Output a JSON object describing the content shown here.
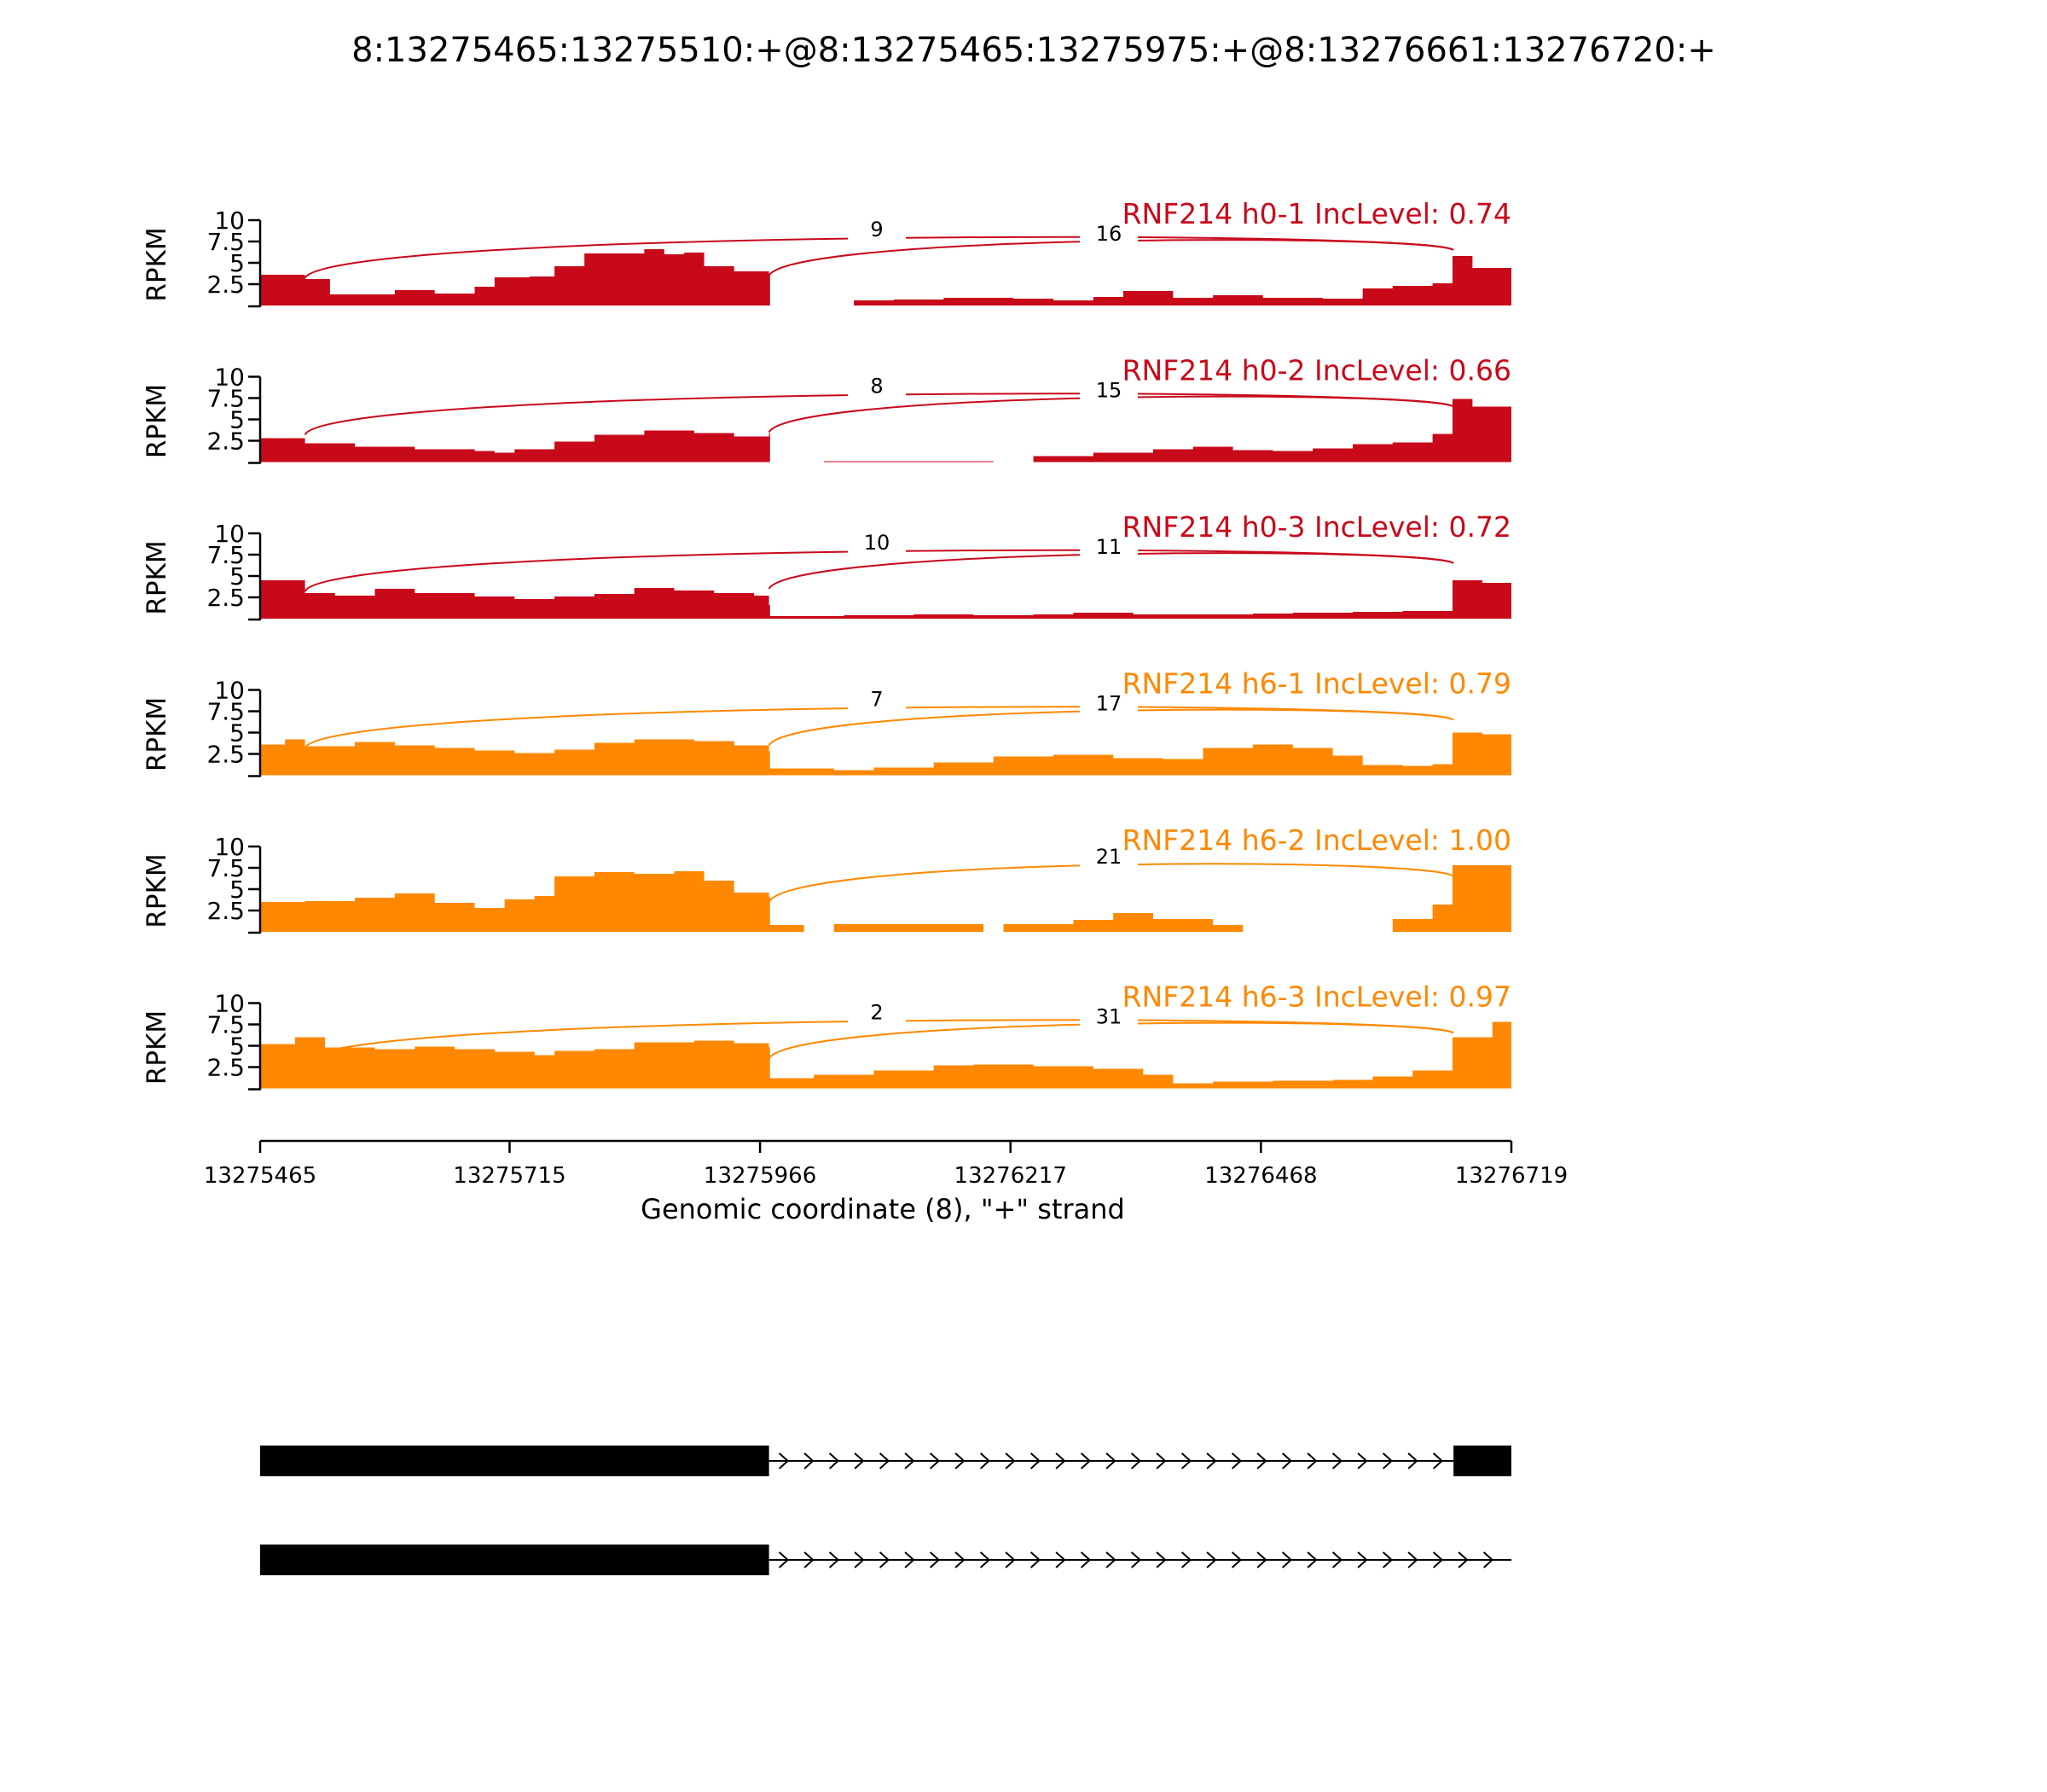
{
  "chart_data": {
    "type": "area",
    "title": "8:13275465:13275510:+@8:13275465:13275975:+@8:13276661:13276720:+",
    "xlabel": "Genomic coordinate (8), \"+\" strand",
    "ylabel": "RPKM",
    "xlim": [
      13275465,
      13276719
    ],
    "ylim": [
      0,
      10
    ],
    "x_ticks": [
      "13275465",
      "13275715",
      "13275966",
      "13276217",
      "13276468",
      "13276719"
    ],
    "y_ticks": [
      "2.5",
      "5",
      "7.5",
      "10"
    ],
    "exon1_end": 13275975,
    "exon2_start": 13276661,
    "colors": {
      "h0": "#c8091a",
      "h6": "#ff8800",
      "axis": "#000000"
    },
    "series": [
      {
        "label": "RNF214 h0-1 IncLevel: 0.74",
        "color": "#c8091a",
        "junctions": [
          {
            "count": "9",
            "from": 13275510,
            "to": 13276661
          },
          {
            "count": "16",
            "from": 13275975,
            "to": 13276661
          }
        ],
        "coverage": [
          [
            13275465,
            3.6
          ],
          [
            13275510,
            3.1
          ],
          [
            13275535,
            1.3
          ],
          [
            13275600,
            1.8
          ],
          [
            13275640,
            1.4
          ],
          [
            13275680,
            2.2
          ],
          [
            13275700,
            3.3
          ],
          [
            13275735,
            3.4
          ],
          [
            13275760,
            4.6
          ],
          [
            13275790,
            6.1
          ],
          [
            13275820,
            6.1
          ],
          [
            13275850,
            6.6
          ],
          [
            13275870,
            6.0
          ],
          [
            13275890,
            6.2
          ],
          [
            13275910,
            4.6
          ],
          [
            13275940,
            4.0
          ],
          [
            13275975,
            3.6
          ],
          [
            13275976,
            0.0
          ],
          [
            13276040,
            0.0
          ],
          [
            13276060,
            0.6
          ],
          [
            13276100,
            0.7
          ],
          [
            13276150,
            0.9
          ],
          [
            13276220,
            0.8
          ],
          [
            13276260,
            0.6
          ],
          [
            13276300,
            1.0
          ],
          [
            13276330,
            1.7
          ],
          [
            13276380,
            0.9
          ],
          [
            13276420,
            1.2
          ],
          [
            13276470,
            0.9
          ],
          [
            13276530,
            0.8
          ],
          [
            13276570,
            2.0
          ],
          [
            13276600,
            2.3
          ],
          [
            13276640,
            2.6
          ],
          [
            13276660,
            5.8
          ],
          [
            13276680,
            4.4
          ],
          [
            13276719,
            4.2
          ]
        ]
      },
      {
        "label": "RNF214 h0-2 IncLevel: 0.66",
        "color": "#c8091a",
        "junctions": [
          {
            "count": "8",
            "from": 13275510,
            "to": 13276661
          },
          {
            "count": "15",
            "from": 13275975,
            "to": 13276661
          }
        ],
        "coverage": [
          [
            13275465,
            2.8
          ],
          [
            13275510,
            2.2
          ],
          [
            13275560,
            1.8
          ],
          [
            13275620,
            1.5
          ],
          [
            13275680,
            1.3
          ],
          [
            13275700,
            1.1
          ],
          [
            13275720,
            1.5
          ],
          [
            13275760,
            2.4
          ],
          [
            13275800,
            3.2
          ],
          [
            13275850,
            3.7
          ],
          [
            13275900,
            3.4
          ],
          [
            13275940,
            3.0
          ],
          [
            13275975,
            3.4
          ],
          [
            13275976,
            0.0
          ],
          [
            13276020,
            0.0
          ],
          [
            13276030,
            0.1
          ],
          [
            13276200,
            0.0
          ],
          [
            13276240,
            0.7
          ],
          [
            13276300,
            1.1
          ],
          [
            13276360,
            1.5
          ],
          [
            13276400,
            1.8
          ],
          [
            13276440,
            1.4
          ],
          [
            13276480,
            1.3
          ],
          [
            13276520,
            1.6
          ],
          [
            13276560,
            2.1
          ],
          [
            13276600,
            2.3
          ],
          [
            13276640,
            3.3
          ],
          [
            13276660,
            7.4
          ],
          [
            13276680,
            6.5
          ],
          [
            13276719,
            6.3
          ]
        ]
      },
      {
        "label": "RNF214 h0-3 IncLevel: 0.72",
        "color": "#c8091a",
        "junctions": [
          {
            "count": "10",
            "from": 13275510,
            "to": 13276661
          },
          {
            "count": "11",
            "from": 13275975,
            "to": 13276661
          }
        ],
        "coverage": [
          [
            13275465,
            4.5
          ],
          [
            13275510,
            3.0
          ],
          [
            13275540,
            2.7
          ],
          [
            13275580,
            3.5
          ],
          [
            13275620,
            3.0
          ],
          [
            13275680,
            2.6
          ],
          [
            13275720,
            2.3
          ],
          [
            13275760,
            2.6
          ],
          [
            13275800,
            2.9
          ],
          [
            13275840,
            3.6
          ],
          [
            13275880,
            3.3
          ],
          [
            13275920,
            3.0
          ],
          [
            13275960,
            2.7
          ],
          [
            13275975,
            1.6
          ],
          [
            13275976,
            0.3
          ],
          [
            13276050,
            0.4
          ],
          [
            13276120,
            0.5
          ],
          [
            13276180,
            0.4
          ],
          [
            13276240,
            0.5
          ],
          [
            13276280,
            0.7
          ],
          [
            13276340,
            0.5
          ],
          [
            13276400,
            0.5
          ],
          [
            13276460,
            0.6
          ],
          [
            13276500,
            0.7
          ],
          [
            13276560,
            0.8
          ],
          [
            13276610,
            0.9
          ],
          [
            13276660,
            4.5
          ],
          [
            13276690,
            4.2
          ],
          [
            13276719,
            4.5
          ]
        ]
      },
      {
        "label": "RNF214 h6-1 IncLevel: 0.79",
        "color": "#ff8800",
        "junctions": [
          {
            "count": "7",
            "from": 13275510,
            "to": 13276661
          },
          {
            "count": "17",
            "from": 13275975,
            "to": 13276661
          }
        ],
        "coverage": [
          [
            13275465,
            3.6
          ],
          [
            13275490,
            4.2
          ],
          [
            13275510,
            3.4
          ],
          [
            13275560,
            3.9
          ],
          [
            13275600,
            3.5
          ],
          [
            13275640,
            3.2
          ],
          [
            13275680,
            2.9
          ],
          [
            13275720,
            2.6
          ],
          [
            13275760,
            3.0
          ],
          [
            13275800,
            3.8
          ],
          [
            13275840,
            4.2
          ],
          [
            13275900,
            4.0
          ],
          [
            13275940,
            3.5
          ],
          [
            13275975,
            2.8
          ],
          [
            13275976,
            0.8
          ],
          [
            13276040,
            0.6
          ],
          [
            13276080,
            0.9
          ],
          [
            13276140,
            1.5
          ],
          [
            13276200,
            2.2
          ],
          [
            13276260,
            2.4
          ],
          [
            13276320,
            2.0
          ],
          [
            13276370,
            1.9
          ],
          [
            13276410,
            3.2
          ],
          [
            13276460,
            3.6
          ],
          [
            13276500,
            3.2
          ],
          [
            13276540,
            2.3
          ],
          [
            13276570,
            1.2
          ],
          [
            13276610,
            1.1
          ],
          [
            13276640,
            1.3
          ],
          [
            13276660,
            5.0
          ],
          [
            13276690,
            4.8
          ],
          [
            13276719,
            5.1
          ]
        ]
      },
      {
        "label": "RNF214 h6-2 IncLevel: 1.00",
        "color": "#ff8800",
        "junctions": [
          {
            "count": "21",
            "from": 13275975,
            "to": 13276661
          }
        ],
        "coverage": [
          [
            13275465,
            3.5
          ],
          [
            13275510,
            3.6
          ],
          [
            13275560,
            4.0
          ],
          [
            13275600,
            4.5
          ],
          [
            13275640,
            3.4
          ],
          [
            13275680,
            2.8
          ],
          [
            13275710,
            3.8
          ],
          [
            13275740,
            4.2
          ],
          [
            13275760,
            6.5
          ],
          [
            13275800,
            7.0
          ],
          [
            13275840,
            6.8
          ],
          [
            13275880,
            7.1
          ],
          [
            13275910,
            6.0
          ],
          [
            13275940,
            4.6
          ],
          [
            13275975,
            4.1
          ],
          [
            13275976,
            0.8
          ],
          [
            13276010,
            0.0
          ],
          [
            13276040,
            0.9
          ],
          [
            13276190,
            0.0
          ],
          [
            13276210,
            0.9
          ],
          [
            13276280,
            1.4
          ],
          [
            13276320,
            2.2
          ],
          [
            13276360,
            1.5
          ],
          [
            13276420,
            0.8
          ],
          [
            13276450,
            0.0
          ],
          [
            13276560,
            0.0
          ],
          [
            13276600,
            1.5
          ],
          [
            13276640,
            3.2
          ],
          [
            13276660,
            7.8
          ],
          [
            13276719,
            7.8
          ]
        ]
      },
      {
        "label": "RNF214 h6-3 IncLevel: 0.97",
        "color": "#ff8800",
        "junctions": [
          {
            "count": "2",
            "from": 13275510,
            "to": 13276661
          },
          {
            "count": "31",
            "from": 13275975,
            "to": 13276661
          }
        ],
        "coverage": [
          [
            13275465,
            5.2
          ],
          [
            13275500,
            6.0
          ],
          [
            13275530,
            4.8
          ],
          [
            13275580,
            4.6
          ],
          [
            13275620,
            4.9
          ],
          [
            13275660,
            4.6
          ],
          [
            13275700,
            4.3
          ],
          [
            13275740,
            3.9
          ],
          [
            13275760,
            4.4
          ],
          [
            13275800,
            4.6
          ],
          [
            13275840,
            5.4
          ],
          [
            13275900,
            5.6
          ],
          [
            13275940,
            5.3
          ],
          [
            13275975,
            4.8
          ],
          [
            13275976,
            1.2
          ],
          [
            13276020,
            1.6
          ],
          [
            13276080,
            2.1
          ],
          [
            13276140,
            2.7
          ],
          [
            13276180,
            2.8
          ],
          [
            13276240,
            2.6
          ],
          [
            13276300,
            2.3
          ],
          [
            13276350,
            1.6
          ],
          [
            13276380,
            0.6
          ],
          [
            13276420,
            0.8
          ],
          [
            13276480,
            0.9
          ],
          [
            13276540,
            1.0
          ],
          [
            13276580,
            1.4
          ],
          [
            13276620,
            2.1
          ],
          [
            13276660,
            6.0
          ],
          [
            13276700,
            7.8
          ],
          [
            13276719,
            8.6
          ]
        ]
      }
    ],
    "transcripts": [
      {
        "exons": [
          [
            13275465,
            13275975
          ],
          [
            13276661,
            13276719
          ]
        ]
      },
      {
        "exons": [
          [
            13275465,
            13275975
          ]
        ]
      }
    ]
  }
}
